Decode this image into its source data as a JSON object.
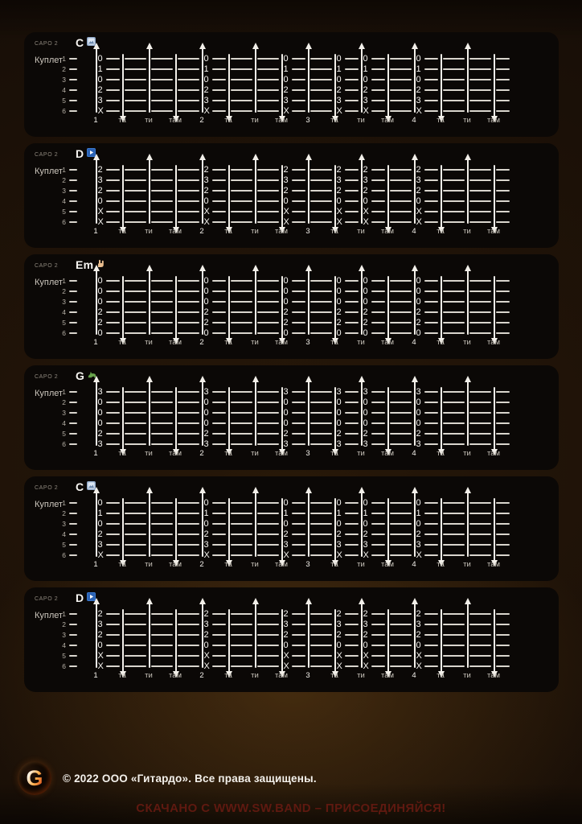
{
  "panels": [
    {
      "capo_label": "CAPO 2",
      "section_label": "Куплет",
      "chord": "C",
      "chord_icon": "picture-icon",
      "frets": [
        "0",
        "1",
        "0",
        "2",
        "3",
        "X"
      ]
    },
    {
      "capo_label": "CAPO 2",
      "section_label": "Куплет",
      "chord": "D",
      "chord_icon": "play-icon",
      "frets": [
        "2",
        "3",
        "2",
        "0",
        "X",
        "X"
      ]
    },
    {
      "capo_label": "CAPO 2",
      "section_label": "Куплет",
      "chord": "Em",
      "chord_icon": "horns-hand-icon",
      "frets": [
        "0",
        "0",
        "0",
        "2",
        "2",
        "0"
      ]
    },
    {
      "capo_label": "CAPO 2",
      "section_label": "Куплет",
      "chord": "G",
      "chord_icon": "lizard-icon",
      "frets": [
        "3",
        "0",
        "0",
        "0",
        "2",
        "3"
      ]
    },
    {
      "capo_label": "CAPO 2",
      "section_label": "Куплет",
      "chord": "C",
      "chord_icon": "picture-icon",
      "frets": [
        "0",
        "1",
        "0",
        "2",
        "3",
        "X"
      ]
    },
    {
      "capo_label": "CAPO 2",
      "section_label": "Куплет",
      "chord": "D",
      "chord_icon": "play-icon",
      "frets": [
        "2",
        "3",
        "2",
        "0",
        "X",
        "X"
      ]
    }
  ],
  "string_numbers": [
    "1",
    "2",
    "3",
    "4",
    "5",
    "6"
  ],
  "beat_columns": [
    {
      "label": "1",
      "direction": "up",
      "show_frets": true,
      "accent": true
    },
    {
      "label": "та",
      "direction": "down",
      "show_frets": false,
      "accent": false
    },
    {
      "label": "ти",
      "direction": "up",
      "show_frets": false,
      "accent": false
    },
    {
      "label": "там",
      "direction": "down",
      "show_frets": false,
      "accent": false
    },
    {
      "label": "2",
      "direction": "up",
      "show_frets": true,
      "accent": true
    },
    {
      "label": "та",
      "direction": "down",
      "show_frets": false,
      "accent": false
    },
    {
      "label": "ти",
      "direction": "up",
      "show_frets": false,
      "accent": false
    },
    {
      "label": "там",
      "direction": "down",
      "show_frets": true,
      "accent": false
    },
    {
      "label": "3",
      "direction": "up",
      "show_frets": false,
      "accent": true
    },
    {
      "label": "та",
      "direction": "down",
      "show_frets": true,
      "accent": false
    },
    {
      "label": "ти",
      "direction": "up",
      "show_frets": true,
      "accent": false
    },
    {
      "label": "там",
      "direction": "down",
      "show_frets": false,
      "accent": false
    },
    {
      "label": "4",
      "direction": "up",
      "show_frets": true,
      "accent": true
    },
    {
      "label": "та",
      "direction": "down",
      "show_frets": false,
      "accent": false
    },
    {
      "label": "ти",
      "direction": "up",
      "show_frets": false,
      "accent": false
    },
    {
      "label": "там",
      "direction": "down",
      "show_frets": false,
      "accent": false
    }
  ],
  "footer": {
    "logo_letter": "G",
    "copyright": "© 2022 ООО «Гитардо». Все права защищены."
  },
  "watermark": "СКАЧАНО С WWW.SW.BAND – ПРИСОЕДИНЯЙСЯ!",
  "colors": {
    "page_background": "#190f07",
    "panel_background": "#0b0806",
    "string_line": "#d9d5cd",
    "arrow": "#f2efe9",
    "text_primary": "#f5f3ee",
    "text_muted": "#c9c4bb",
    "watermark_red": "#5f1910"
  }
}
